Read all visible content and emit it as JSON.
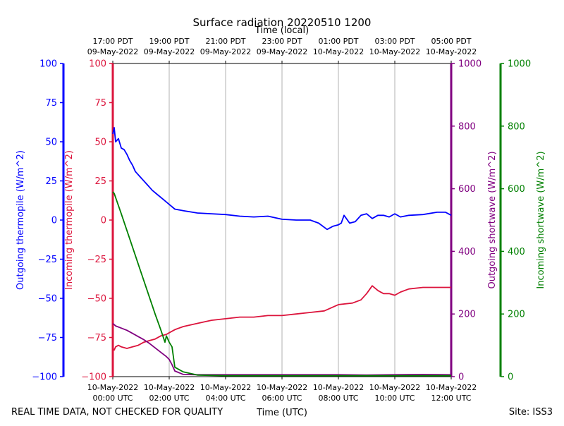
{
  "chart_data": {
    "type": "line",
    "title": "Surface radiation 20220510 1200",
    "top_axis_label": "Time (local)",
    "xlabel": "Time (UTC)",
    "footer_left": "REAL TIME DATA, NOT CHECKED FOR QUALITY",
    "footer_right": "Site: ISS3",
    "xlim": [
      0,
      12
    ],
    "x_ticks": [
      0,
      2,
      4,
      6,
      8,
      10,
      12
    ],
    "x_ticks_utc": [
      [
        "10-May-2022",
        "00:00 UTC"
      ],
      [
        "10-May-2022",
        "02:00 UTC"
      ],
      [
        "10-May-2022",
        "04:00 UTC"
      ],
      [
        "10-May-2022",
        "06:00 UTC"
      ],
      [
        "10-May-2022",
        "08:00 UTC"
      ],
      [
        "10-May-2022",
        "10:00 UTC"
      ],
      [
        "10-May-2022",
        "12:00 UTC"
      ]
    ],
    "x_ticks_local": [
      [
        "17:00 PDT",
        "09-May-2022"
      ],
      [
        "19:00 PDT",
        "09-May-2022"
      ],
      [
        "21:00 PDT",
        "09-May-2022"
      ],
      [
        "23:00 PDT",
        "09-May-2022"
      ],
      [
        "01:00 PDT",
        "10-May-2022"
      ],
      [
        "03:00 PDT",
        "10-May-2022"
      ],
      [
        "05:00 PDT",
        "10-May-2022"
      ]
    ],
    "grid": "vertical",
    "axes": [
      {
        "label": "Outgoing thermopile (W/m^2)",
        "color": "#0000ff",
        "ylim": [
          -100,
          100
        ],
        "ticks": [
          "100",
          "75",
          "50",
          "25",
          "0",
          "−25",
          "−50",
          "−75",
          "−100"
        ],
        "side": "left-outer"
      },
      {
        "label": "Incoming thermopile (W/m^2)",
        "color": "#dc143c",
        "ylim": [
          -100,
          100
        ],
        "ticks": [
          "100",
          "75",
          "50",
          "25",
          "0",
          "−25",
          "−50",
          "−75",
          "−100"
        ],
        "side": "left-inner"
      },
      {
        "label": "Outgoing shortwave (W/m^2)",
        "color": "#800080",
        "ylim": [
          0,
          1000
        ],
        "ticks": [
          "1000",
          "800",
          "600",
          "400",
          "200",
          "0"
        ],
        "side": "right-inner"
      },
      {
        "label": "Incoming shortwave (W/m^2)",
        "color": "#008000",
        "ylim": [
          0,
          1000
        ],
        "ticks": [
          "1000",
          "800",
          "600",
          "400",
          "200",
          "0"
        ],
        "side": "right-outer"
      }
    ],
    "series": [
      {
        "color": "#0000ff",
        "axis": 0,
        "x": [
          0,
          0.05,
          0.1,
          0.2,
          0.3,
          0.4,
          0.5,
          0.6,
          0.7,
          0.8,
          1.0,
          1.2,
          1.4,
          1.6,
          1.8,
          2.0,
          2.2,
          2.5,
          3.0,
          3.5,
          4.0,
          4.5,
          5.0,
          5.5,
          6.0,
          6.5,
          7.0,
          7.3,
          7.6,
          7.8,
          8.0,
          8.1,
          8.2,
          8.4,
          8.6,
          8.8,
          9.0,
          9.2,
          9.4,
          9.6,
          9.8,
          10.0,
          10.2,
          10.5,
          11.0,
          11.5,
          11.8,
          12.0
        ],
        "y": [
          55,
          59,
          50,
          52,
          46,
          45,
          42,
          38,
          35,
          31,
          27,
          23,
          19,
          16,
          13,
          10,
          7,
          6,
          4.5,
          4,
          3.5,
          2.5,
          2,
          2.5,
          0.5,
          0,
          0,
          -2,
          -6,
          -4,
          -3,
          -2,
          3,
          -2,
          -1,
          3,
          4,
          1,
          3,
          3,
          2,
          4,
          2,
          3,
          3.5,
          5,
          5,
          3
        ]
      },
      {
        "color": "#dc143c",
        "axis": 1,
        "x": [
          0,
          0.05,
          0.1,
          0.2,
          0.3,
          0.5,
          0.7,
          0.9,
          1.1,
          1.3,
          1.5,
          1.7,
          1.9,
          2.0,
          2.2,
          2.5,
          3.0,
          3.5,
          4.0,
          4.5,
          5.0,
          5.5,
          6.0,
          6.5,
          7.0,
          7.5,
          8.0,
          8.5,
          8.8,
          9.0,
          9.2,
          9.4,
          9.6,
          9.8,
          10.0,
          10.2,
          10.5,
          11.0,
          11.5,
          12.0
        ],
        "y": [
          -82,
          -83,
          -81,
          -80,
          -81,
          -82,
          -81,
          -80,
          -78,
          -77,
          -76,
          -74,
          -73,
          -72,
          -70,
          -68,
          -66,
          -64,
          -63,
          -62,
          -62,
          -61,
          -61,
          -60,
          -59,
          -58,
          -54,
          -53,
          -51,
          -47,
          -42,
          -45,
          -47,
          -47,
          -48,
          -46,
          -44,
          -43,
          -43,
          -43
        ]
      },
      {
        "color": "#800080",
        "axis": 2,
        "x": [
          0,
          0.1,
          0.3,
          0.5,
          0.7,
          0.9,
          1.1,
          1.3,
          1.5,
          1.7,
          1.9,
          2.0,
          2.1,
          2.2,
          2.5,
          3.0,
          4.0,
          5.0,
          6.0,
          7.0,
          8.0,
          9.0,
          10.0,
          11.0,
          12.0
        ],
        "y": [
          170,
          162,
          155,
          148,
          138,
          128,
          118,
          106,
          92,
          78,
          64,
          55,
          38,
          18,
          7,
          6,
          6,
          6,
          6,
          6,
          6,
          5,
          6,
          7,
          6
        ]
      },
      {
        "color": "#008000",
        "axis": 3,
        "x": [
          0,
          0.05,
          0.3,
          0.6,
          0.9,
          1.2,
          1.5,
          1.7,
          1.85,
          1.9,
          1.95,
          2.0,
          2.1,
          2.2,
          2.5,
          3.0,
          4.0,
          5.0,
          6.0,
          7.0,
          8.0,
          9.0,
          10.0,
          11.0,
          12.0
        ],
        "y": [
          590,
          585,
          520,
          440,
          360,
          280,
          200,
          150,
          110,
          130,
          120,
          110,
          95,
          30,
          15,
          5,
          3,
          3,
          3,
          3,
          3,
          3,
          3,
          3,
          3
        ]
      }
    ]
  }
}
